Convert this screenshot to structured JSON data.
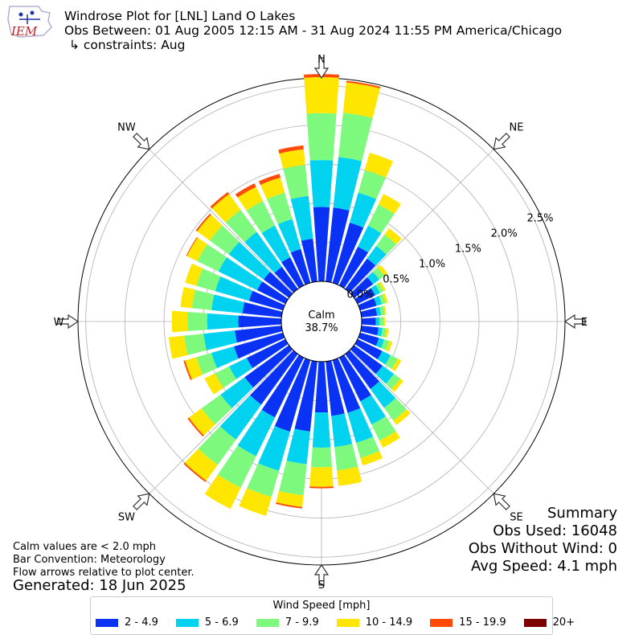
{
  "header": {
    "title": "Windrose Plot for [LNL] Land O Lakes",
    "subtitle": "Obs Between: 01 Aug 2005 12:15 AM - 31 Aug 2024 11:55 PM America/Chicago",
    "constraints": "↳ constraints: Aug",
    "logo_text": "IEM"
  },
  "chart_data": {
    "type": "windrose",
    "directions": [
      "N",
      "NE",
      "E",
      "SE",
      "S",
      "SW",
      "W",
      "NW"
    ],
    "radial_ticks": [
      "0.0%",
      "0.5%",
      "1.0%",
      "1.5%",
      "2.0%",
      "2.5%"
    ],
    "radial_tick_values": [
      0,
      0.5,
      1.0,
      1.5,
      2.0,
      2.5
    ],
    "rmax_percent": 2.6,
    "calm_label": "Calm",
    "calm_value": "38.7%",
    "sector_width_deg": 10,
    "bins": [
      {
        "name": "2 - 4.9",
        "color": "#0a32f5"
      },
      {
        "name": "5 - 6.9",
        "color": "#00d2f0"
      },
      {
        "name": "7 - 9.9",
        "color": "#7dfa7d"
      },
      {
        "name": "10 - 14.9",
        "color": "#ffe600"
      },
      {
        "name": "15 - 19.9",
        "color": "#ff4a0a"
      },
      {
        "name": "20+",
        "color": "#7d0000"
      }
    ],
    "sectors": [
      {
        "dir": 0,
        "values": [
          0.95,
          0.6,
          0.6,
          0.46,
          0.04,
          0.0
        ]
      },
      {
        "dir": 10,
        "values": [
          0.95,
          0.65,
          0.57,
          0.39,
          0.02,
          0.0
        ]
      },
      {
        "dir": 20,
        "values": [
          0.8,
          0.4,
          0.3,
          0.23,
          0.0,
          0.0
        ]
      },
      {
        "dir": 30,
        "values": [
          0.55,
          0.3,
          0.3,
          0.15,
          0.0,
          0.0
        ]
      },
      {
        "dir": 40,
        "values": [
          0.48,
          0.2,
          0.18,
          0.1,
          0.0,
          0.0
        ]
      },
      {
        "dir": 50,
        "values": [
          0.3,
          0.1,
          0.08,
          0.05,
          0.0,
          0.0
        ]
      },
      {
        "dir": 60,
        "values": [
          0.25,
          0.07,
          0.05,
          0.03,
          0.0,
          0.0
        ]
      },
      {
        "dir": 70,
        "values": [
          0.22,
          0.07,
          0.05,
          0.03,
          0.0,
          0.0
        ]
      },
      {
        "dir": 80,
        "values": [
          0.2,
          0.05,
          0.05,
          0.02,
          0.0,
          0.0
        ]
      },
      {
        "dir": 90,
        "values": [
          0.18,
          0.05,
          0.05,
          0.02,
          0.0,
          0.0
        ]
      },
      {
        "dir": 100,
        "values": [
          0.22,
          0.05,
          0.05,
          0.03,
          0.0,
          0.0
        ]
      },
      {
        "dir": 110,
        "values": [
          0.25,
          0.07,
          0.07,
          0.04,
          0.0,
          0.0
        ]
      },
      {
        "dir": 120,
        "values": [
          0.35,
          0.12,
          0.1,
          0.05,
          0.0,
          0.0
        ]
      },
      {
        "dir": 130,
        "values": [
          0.45,
          0.18,
          0.1,
          0.05,
          0.0,
          0.0
        ]
      },
      {
        "dir": 140,
        "values": [
          0.55,
          0.3,
          0.2,
          0.07,
          0.0,
          0.0
        ]
      },
      {
        "dir": 150,
        "values": [
          0.62,
          0.33,
          0.23,
          0.1,
          0.0,
          0.0
        ]
      },
      {
        "dir": 160,
        "values": [
          0.7,
          0.4,
          0.2,
          0.1,
          0.0,
          0.0
        ]
      },
      {
        "dir": 170,
        "values": [
          0.7,
          0.4,
          0.3,
          0.2,
          0.0,
          0.0
        ]
      },
      {
        "dir": 180,
        "values": [
          0.65,
          0.45,
          0.25,
          0.25,
          0.02,
          0.0
        ]
      },
      {
        "dir": 190,
        "values": [
          0.9,
          0.42,
          0.4,
          0.15,
          0.02,
          0.0
        ]
      },
      {
        "dir": 200,
        "values": [
          0.95,
          0.52,
          0.35,
          0.25,
          0.0,
          0.0
        ]
      },
      {
        "dir": 210,
        "values": [
          0.85,
          0.55,
          0.45,
          0.3,
          0.0,
          0.0
        ]
      },
      {
        "dir": 220,
        "values": [
          0.8,
          0.55,
          0.4,
          0.25,
          0.02,
          0.0
        ]
      },
      {
        "dir": 230,
        "values": [
          0.7,
          0.38,
          0.3,
          0.2,
          0.02,
          0.0
        ]
      },
      {
        "dir": 240,
        "values": [
          0.55,
          0.25,
          0.2,
          0.15,
          0.0,
          0.0
        ]
      },
      {
        "dir": 250,
        "values": [
          0.65,
          0.3,
          0.2,
          0.15,
          0.02,
          0.0
        ]
      },
      {
        "dir": 260,
        "values": [
          0.6,
          0.4,
          0.25,
          0.2,
          0.0,
          0.0
        ]
      },
      {
        "dir": 270,
        "values": [
          0.55,
          0.4,
          0.25,
          0.2,
          0.0,
          0.0
        ]
      },
      {
        "dir": 280,
        "values": [
          0.5,
          0.4,
          0.25,
          0.15,
          0.0,
          0.0
        ]
      },
      {
        "dir": 290,
        "values": [
          0.45,
          0.45,
          0.25,
          0.15,
          0.0,
          0.0
        ]
      },
      {
        "dir": 300,
        "values": [
          0.4,
          0.55,
          0.3,
          0.15,
          0.01,
          0.0
        ]
      },
      {
        "dir": 310,
        "values": [
          0.4,
          0.55,
          0.3,
          0.2,
          0.02,
          0.0
        ]
      },
      {
        "dir": 320,
        "values": [
          0.35,
          0.55,
          0.35,
          0.25,
          0.03,
          0.0
        ]
      },
      {
        "dir": 330,
        "values": [
          0.4,
          0.45,
          0.35,
          0.2,
          0.05,
          0.0
        ]
      },
      {
        "dir": 340,
        "values": [
          0.45,
          0.4,
          0.35,
          0.2,
          0.05,
          0.0
        ]
      },
      {
        "dir": 350,
        "values": [
          0.55,
          0.55,
          0.4,
          0.2,
          0.05,
          0.0
        ]
      }
    ]
  },
  "legend": {
    "title": "Wind Speed [mph]"
  },
  "footer": {
    "calm_note": "Calm values are < 2.0 mph",
    "bar_convention": "Bar Convention: Meteorology",
    "flow_note": "Flow arrows relative to plot center.",
    "generated": "Generated: 18 Jun 2025"
  },
  "summary": {
    "title": "Summary",
    "obs_used": "Obs Used: 16048",
    "obs_without_wind": "Obs Without Wind: 0",
    "avg_speed": "Avg Speed: 4.1 mph"
  }
}
